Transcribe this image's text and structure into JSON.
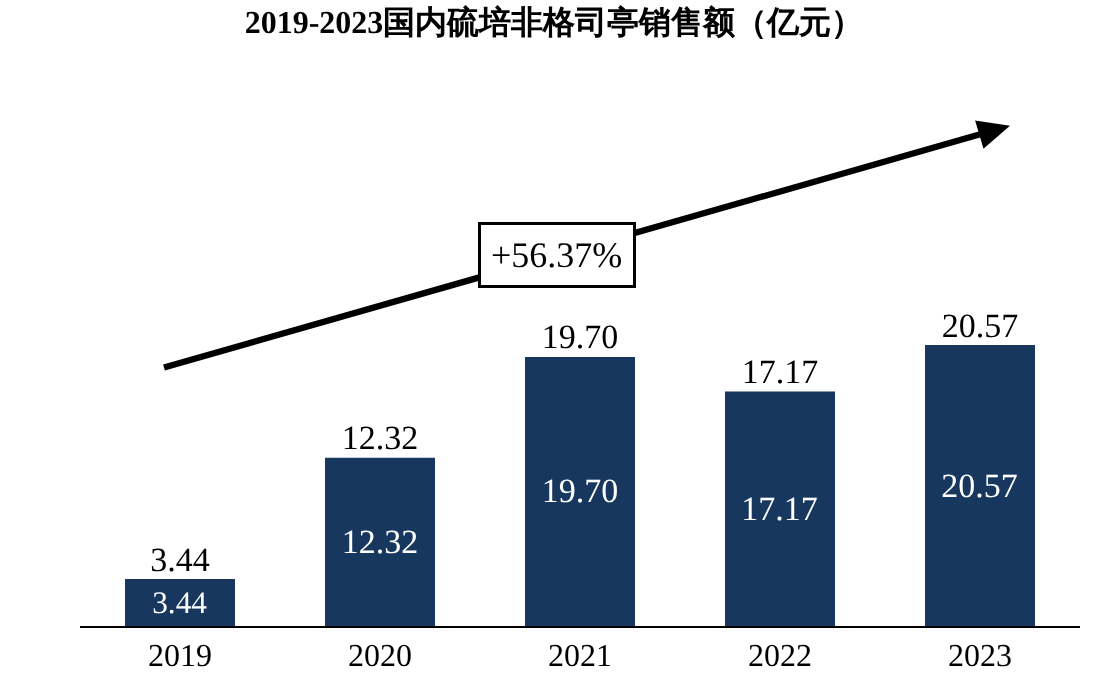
{
  "chart_data": {
    "type": "bar",
    "title": "2019-2023国内硫培非格司亭销售额（亿元）",
    "categories": [
      "2019",
      "2020",
      "2021",
      "2022",
      "2023"
    ],
    "values": [
      3.44,
      12.32,
      19.7,
      17.17,
      20.57
    ],
    "value_labels": [
      "3.44",
      "12.32",
      "19.70",
      "17.17",
      "20.57"
    ],
    "color": "#17375e",
    "data_labels": true,
    "legend": false,
    "annotations": [
      "+56.37%"
    ]
  }
}
